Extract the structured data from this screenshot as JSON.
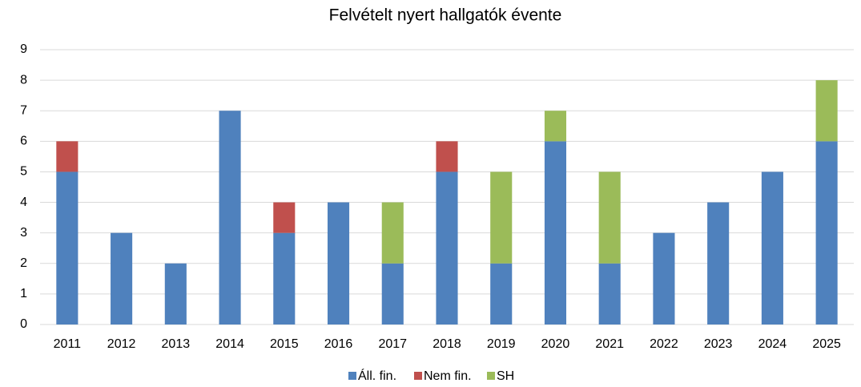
{
  "chart_data": {
    "type": "stacked_bar",
    "title": "Felvételt nyert hallgatók évente",
    "categories": [
      "2011",
      "2012",
      "2013",
      "2014",
      "2015",
      "2016",
      "2017",
      "2018",
      "2019",
      "2020",
      "2021",
      "2022",
      "2023",
      "2024",
      "2025"
    ],
    "series": [
      {
        "name": "Áll. fin.",
        "color": "#4f81bd",
        "values": [
          5,
          3,
          2,
          7,
          3,
          4,
          2,
          5,
          2,
          6,
          2,
          3,
          4,
          5,
          6
        ]
      },
      {
        "name": "Nem fin.",
        "color": "#c0504d",
        "values": [
          1,
          0,
          0,
          0,
          1,
          0,
          0,
          1,
          0,
          0,
          0,
          0,
          0,
          0,
          0
        ]
      },
      {
        "name": "SH",
        "color": "#9bbb59",
        "values": [
          0,
          0,
          0,
          0,
          0,
          0,
          2,
          0,
          3,
          1,
          3,
          0,
          0,
          0,
          2
        ]
      }
    ],
    "ylim": [
      0,
      9
    ],
    "yticks": [
      0,
      1,
      2,
      3,
      4,
      5,
      6,
      7,
      8,
      9
    ],
    "grid": true,
    "legend": "bottom"
  }
}
